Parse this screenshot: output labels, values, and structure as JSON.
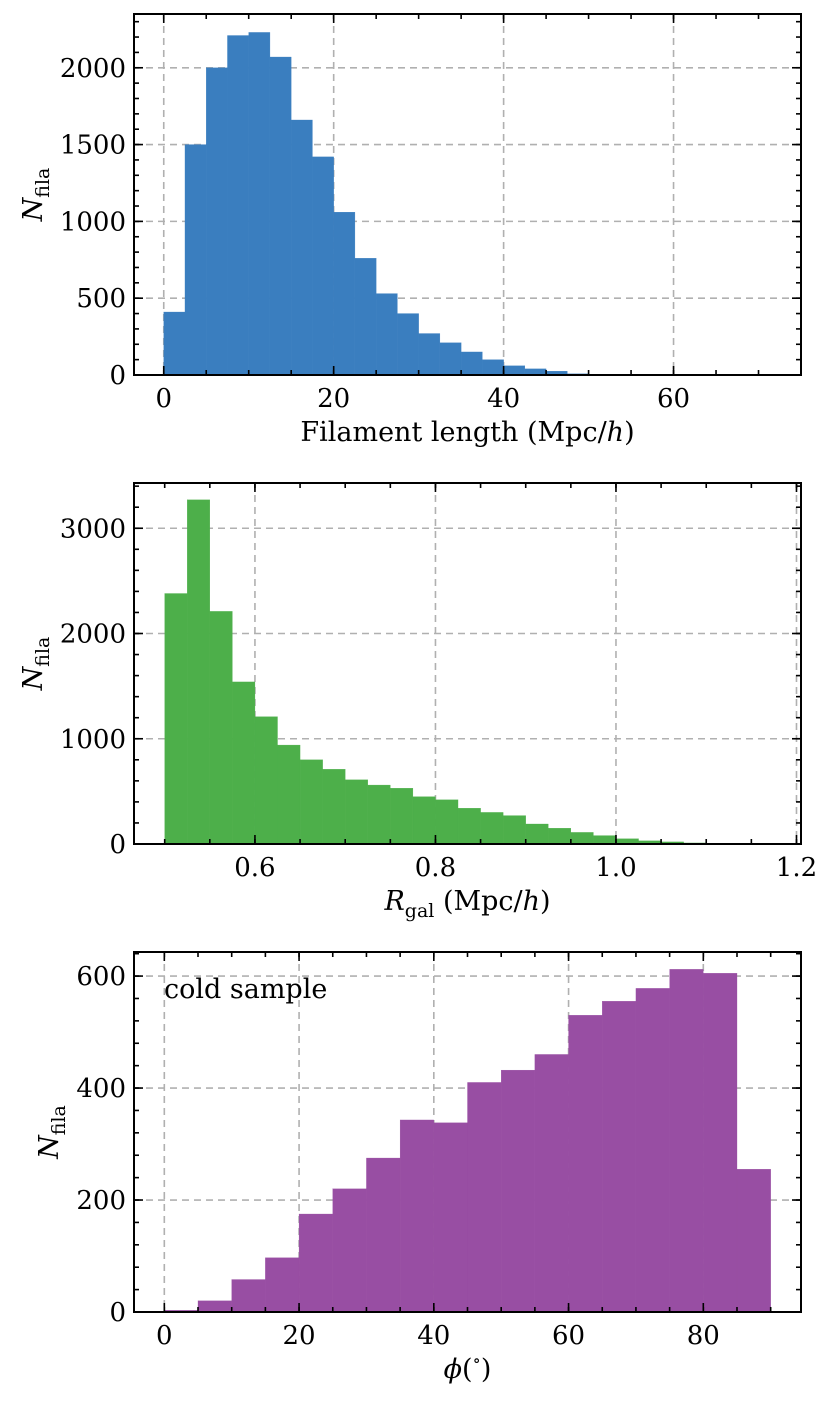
{
  "chart_data": [
    {
      "type": "bar",
      "bin_edges": [
        0,
        2.5,
        5,
        7.5,
        10,
        12.5,
        15,
        17.5,
        20,
        22.5,
        25,
        27.5,
        30,
        32.5,
        35,
        37.5,
        40,
        42.5,
        45,
        47.5,
        50,
        52.5,
        55,
        57.5,
        60,
        62.5,
        65,
        67.5,
        70,
        72.5
      ],
      "values": [
        410,
        1500,
        2000,
        2210,
        2230,
        2070,
        1660,
        1420,
        1060,
        760,
        530,
        400,
        270,
        210,
        150,
        100,
        60,
        40,
        25,
        8,
        3,
        2,
        1,
        1,
        1,
        0,
        0,
        0,
        0
      ],
      "color": "#3a7ebf",
      "xlabel": "Filament length (Mpc/h)",
      "ylabel": "N_fila",
      "xlim": [
        -3.5,
        75
      ],
      "ylim": [
        0,
        2350
      ],
      "xticks": [
        0,
        20,
        40,
        60
      ],
      "yticks": [
        0,
        500,
        1000,
        1500,
        2000
      ],
      "xtick_labels": [
        "0",
        "20",
        "40",
        "60"
      ],
      "ytick_labels": [
        "0",
        "500",
        "1000",
        "1500",
        "2000"
      ],
      "grid": true
    },
    {
      "type": "bar",
      "bin_edges": [
        0.5,
        0.525,
        0.55,
        0.575,
        0.6,
        0.625,
        0.65,
        0.675,
        0.7,
        0.725,
        0.75,
        0.775,
        0.8,
        0.825,
        0.85,
        0.875,
        0.9,
        0.925,
        0.95,
        0.975,
        1.0,
        1.025,
        1.05,
        1.075,
        1.1,
        1.125,
        1.15,
        1.175
      ],
      "values": [
        2380,
        3270,
        2210,
        1540,
        1210,
        940,
        800,
        710,
        610,
        560,
        530,
        450,
        420,
        340,
        300,
        270,
        190,
        150,
        110,
        80,
        50,
        30,
        20,
        10,
        5,
        3,
        2
      ],
      "color": "#4daf4a",
      "xlabel": "R_gal (Mpc/h)",
      "ylabel": "N_fila",
      "xlim": [
        0.466,
        1.205
      ],
      "ylim": [
        0,
        3430
      ],
      "xticks": [
        0.6,
        0.8,
        1.0,
        1.2
      ],
      "yticks": [
        0,
        1000,
        2000,
        3000
      ],
      "xtick_labels": [
        "0.6",
        "0.8",
        "1.0",
        "1.2"
      ],
      "ytick_labels": [
        "0",
        "1000",
        "2000",
        "3000"
      ],
      "grid": true
    },
    {
      "type": "bar",
      "bin_edges": [
        0,
        5,
        10,
        15,
        20,
        25,
        30,
        35,
        40,
        45,
        50,
        55,
        60,
        65,
        70,
        75,
        80,
        85,
        90
      ],
      "values": [
        3,
        20,
        58,
        97,
        175,
        220,
        275,
        343,
        338,
        410,
        432,
        460,
        530,
        555,
        578,
        612,
        605,
        255
      ],
      "color": "#984ea3",
      "xlabel": "phi(deg)",
      "ylabel": "N_fila",
      "xlim": [
        -4.5,
        94.5
      ],
      "ylim": [
        0,
        643
      ],
      "xticks": [
        0,
        20,
        40,
        60,
        80
      ],
      "yticks": [
        0,
        200,
        400,
        600
      ],
      "xtick_labels": [
        "0",
        "20",
        "40",
        "60",
        "80"
      ],
      "ytick_labels": [
        "0",
        "200",
        "400",
        "600"
      ],
      "grid": true,
      "annotation": "cold sample"
    }
  ]
}
